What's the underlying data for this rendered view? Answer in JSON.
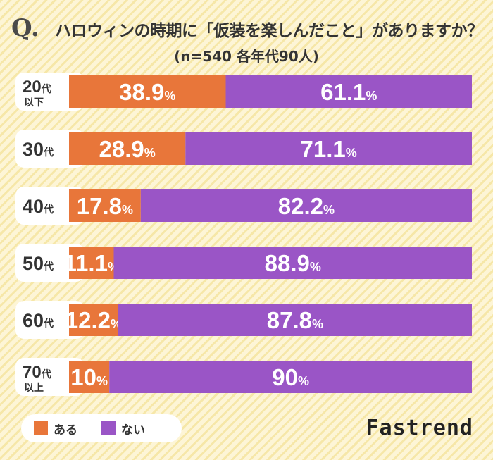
{
  "chart_data": {
    "type": "bar",
    "orientation": "horizontal",
    "stacked": true,
    "title": "ハロウィンの時期に「仮装を楽しんだこと」がありますか？",
    "title_mark": "Q.",
    "subtitle": "(n=540  各年代90人)",
    "categories": [
      [
        "20代",
        "以下"
      ],
      [
        "30代"
      ],
      [
        "40代"
      ],
      [
        "50代"
      ],
      [
        "60代"
      ],
      [
        "70代",
        "以上"
      ]
    ],
    "series": [
      {
        "name": "ある",
        "color": "#e8763a",
        "values": [
          38.9,
          28.9,
          17.8,
          11.1,
          12.2,
          10
        ],
        "labels": [
          "38.9",
          "28.9",
          "17.8",
          "11.1",
          "12.2",
          "10"
        ]
      },
      {
        "name": "ない",
        "color": "#9a55c6",
        "values": [
          61.1,
          71.1,
          82.2,
          88.9,
          87.8,
          90
        ],
        "labels": [
          "61.1",
          "71.1",
          "82.2",
          "88.9",
          "87.8",
          "90"
        ]
      }
    ],
    "unit": "%",
    "xlim": [
      0,
      100
    ],
    "legend_position": "bottom-left"
  },
  "brand": "Fastrend"
}
